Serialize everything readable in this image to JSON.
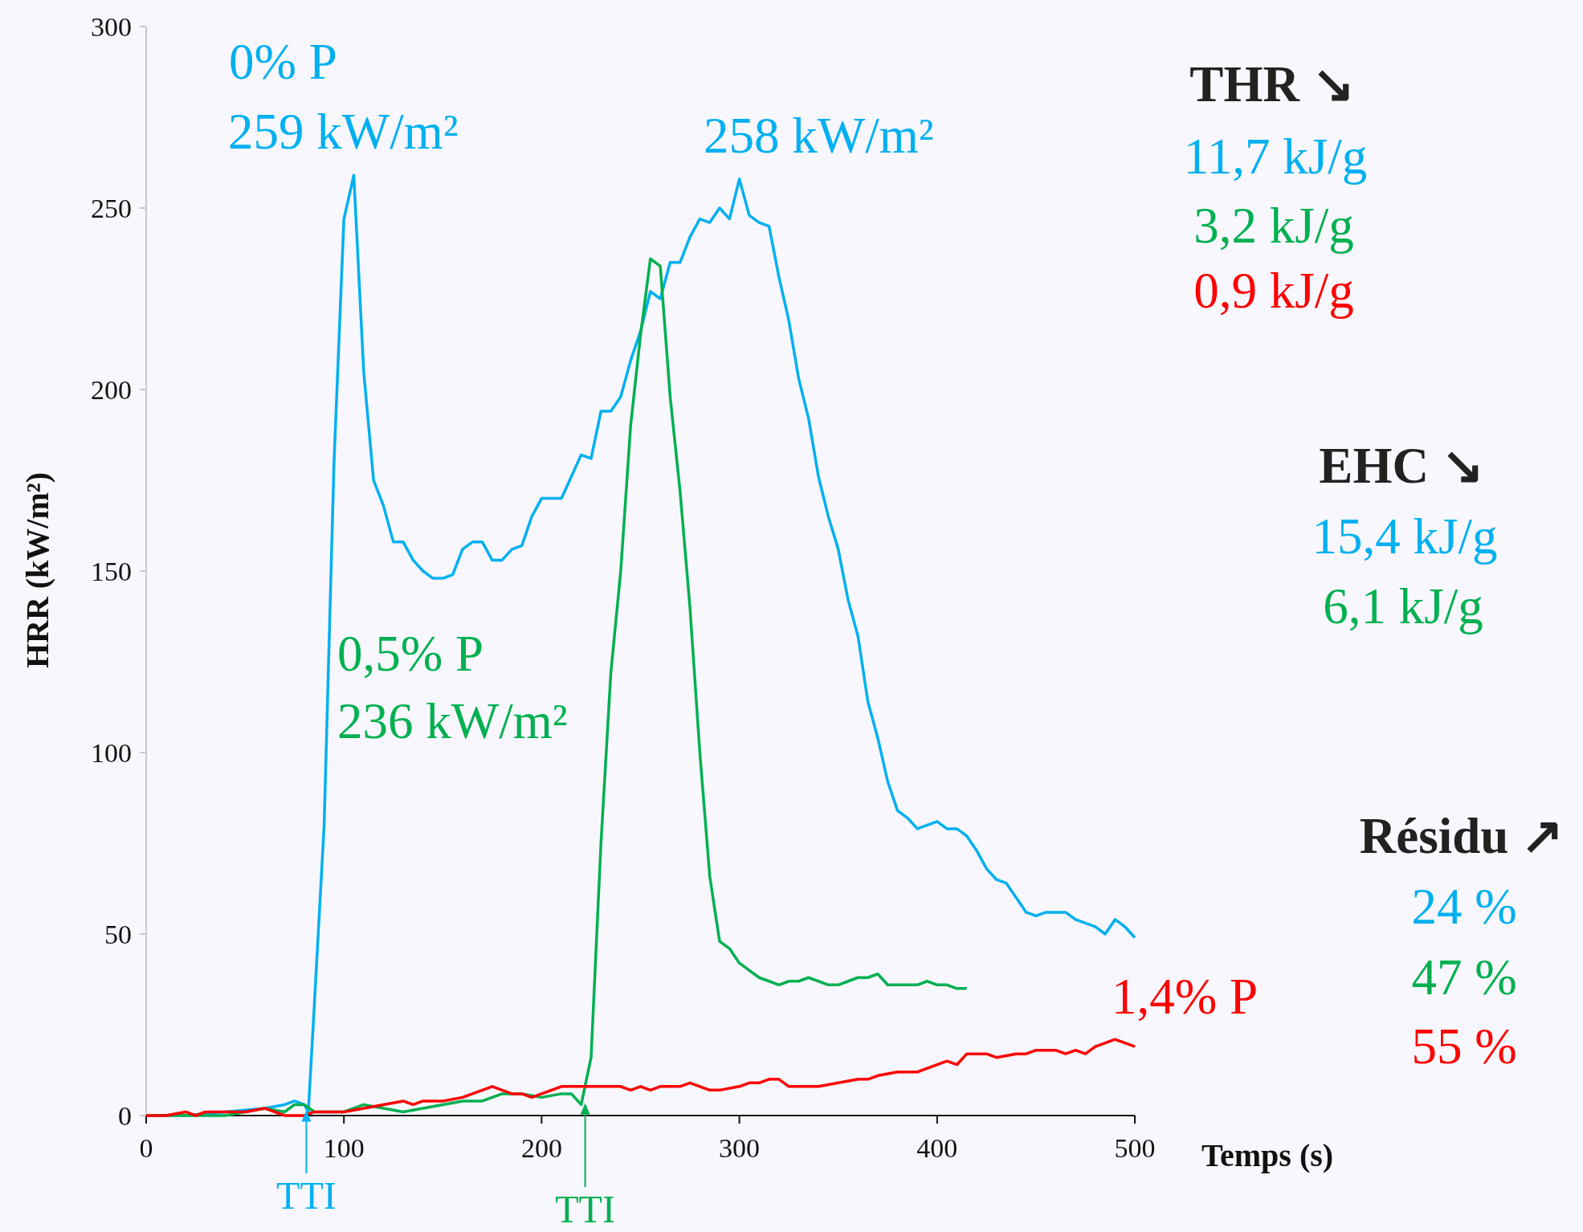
{
  "chart_data": {
    "type": "line",
    "xlabel": "Temps (s)",
    "ylabel": "HRR (kW/m²)",
    "xlim": [
      0,
      500
    ],
    "xticks": [
      0,
      100,
      200,
      300,
      400,
      500
    ],
    "ylim": [
      0,
      300
    ],
    "yticks": [
      0,
      50,
      100,
      150,
      200,
      250,
      300
    ],
    "marker": "none",
    "line_style": "solid",
    "series": [
      {
        "color": "#00b0f0",
        "x": [
          0,
          20,
          40,
          60,
          70,
          75,
          80,
          82,
          85,
          90,
          95,
          100,
          105,
          110,
          115,
          120,
          125,
          130,
          135,
          140,
          145,
          150,
          155,
          160,
          165,
          170,
          175,
          180,
          185,
          190,
          195,
          200,
          205,
          210,
          215,
          220,
          225,
          230,
          235,
          240,
          245,
          250,
          255,
          260,
          265,
          270,
          275,
          280,
          285,
          290,
          295,
          300,
          305,
          310,
          315,
          320,
          325,
          330,
          335,
          340,
          345,
          350,
          355,
          360,
          365,
          370,
          375,
          380,
          385,
          390,
          395,
          400,
          405,
          410,
          415,
          420,
          425,
          430,
          435,
          440,
          445,
          450,
          455,
          460,
          465,
          470,
          475,
          480,
          485,
          490,
          495,
          500
        ],
        "values": [
          0,
          0,
          1,
          2,
          3,
          4,
          3,
          1,
          30,
          80,
          180,
          247,
          259,
          205,
          175,
          168,
          158,
          158,
          153,
          150,
          148,
          148,
          149,
          156,
          158,
          158,
          153,
          153,
          156,
          157,
          165,
          170,
          170,
          170,
          176,
          182,
          181,
          194,
          194,
          198,
          208,
          216,
          227,
          225,
          235,
          235,
          242,
          247,
          246,
          250,
          247,
          258,
          248,
          246,
          245,
          231,
          219,
          203,
          192,
          176,
          165,
          156,
          142,
          132,
          114,
          104,
          92,
          84,
          82,
          79,
          80,
          81,
          79,
          79,
          77,
          73,
          68,
          65,
          64,
          60,
          56,
          55,
          56,
          56,
          56,
          54,
          53,
          52,
          50,
          54,
          52,
          49
        ]
      },
      {
        "color": "#00b050",
        "x": [
          0,
          40,
          60,
          70,
          75,
          80,
          85,
          100,
          110,
          120,
          130,
          140,
          150,
          160,
          170,
          180,
          190,
          200,
          210,
          215,
          220,
          225,
          230,
          235,
          240,
          245,
          250,
          255,
          260,
          265,
          270,
          275,
          280,
          285,
          290,
          295,
          300,
          305,
          310,
          315,
          320,
          325,
          330,
          335,
          340,
          345,
          350,
          355,
          360,
          365,
          370,
          375,
          380,
          385,
          390,
          395,
          400,
          405,
          410,
          415
        ],
        "values": [
          0,
          0,
          2,
          1,
          3,
          3,
          1,
          1,
          3,
          2,
          1,
          2,
          3,
          4,
          4,
          6,
          6,
          5,
          6,
          6,
          3,
          16,
          75,
          122,
          150,
          190,
          215,
          236,
          234,
          198,
          172,
          140,
          100,
          66,
          48,
          46,
          42,
          40,
          38,
          37,
          36,
          37,
          37,
          38,
          37,
          36,
          36,
          37,
          38,
          38,
          39,
          36,
          36,
          36,
          36,
          37,
          36,
          36,
          35,
          35
        ]
      },
      {
        "color": "#ff0000",
        "x": [
          0,
          10,
          20,
          25,
          30,
          40,
          50,
          60,
          70,
          80,
          85,
          90,
          100,
          110,
          120,
          130,
          135,
          140,
          150,
          160,
          170,
          175,
          180,
          185,
          190,
          195,
          200,
          210,
          220,
          230,
          240,
          245,
          250,
          255,
          260,
          270,
          275,
          285,
          290,
          300,
          305,
          310,
          315,
          320,
          325,
          330,
          340,
          350,
          360,
          365,
          370,
          380,
          390,
          400,
          405,
          410,
          415,
          420,
          425,
          430,
          440,
          445,
          450,
          460,
          465,
          470,
          475,
          480,
          490,
          500
        ],
        "values": [
          0,
          0,
          1,
          0,
          1,
          1,
          1,
          2,
          0,
          0,
          1,
          1,
          1,
          2,
          3,
          4,
          3,
          4,
          4,
          5,
          7,
          8,
          7,
          6,
          6,
          5,
          6,
          8,
          8,
          8,
          8,
          7,
          8,
          7,
          8,
          8,
          9,
          7,
          7,
          8,
          9,
          9,
          10,
          10,
          8,
          8,
          8,
          9,
          10,
          10,
          11,
          12,
          12,
          14,
          15,
          14,
          17,
          17,
          17,
          16,
          17,
          17,
          18,
          18,
          17,
          18,
          17,
          19,
          21,
          19
        ]
      }
    ],
    "annotations": [
      "0% P",
      "259 kW/m²",
      "258 kW/m²",
      "0,5% P",
      "236 kW/m²",
      "1,4% P",
      "THR ↘",
      "11,7 kJ/g",
      "3,2 kJ/g",
      "0,9 kJ/g",
      "EHC ↘",
      "15,4 kJ/g",
      "6,1 kJ/g",
      "Résidu ↗",
      "24 %",
      "47 %",
      "55 %",
      {
        "text": "TTI",
        "x": 81,
        "y": 1
      },
      {
        "text": "TTI",
        "x": 222,
        "y": 3
      }
    ]
  }
}
